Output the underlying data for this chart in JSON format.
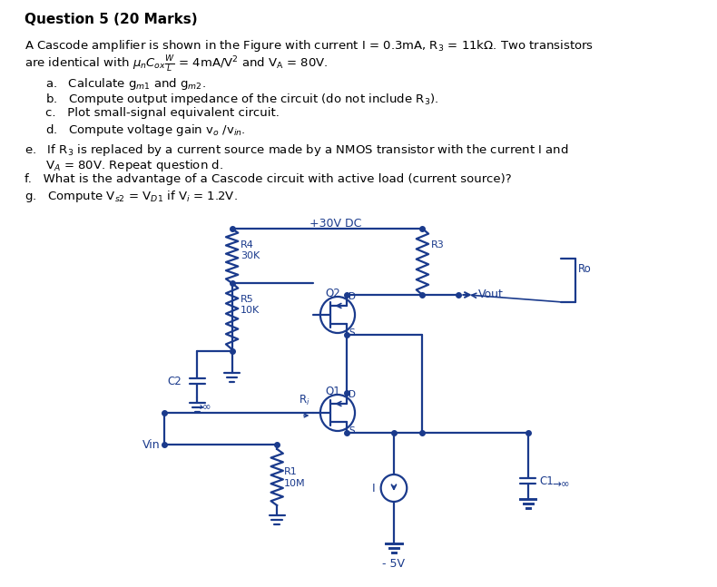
{
  "bg": "#ffffff",
  "cc": "#1a3a8c",
  "tc": "#000000",
  "fig_w": 7.9,
  "fig_h": 6.47,
  "dpi": 100,
  "title": "Question 5 (20 Marks)",
  "desc1": "A Cascode amplifier is shown in the Figure with current I = 0.3mA, R",
  "desc1b": " = 11kΩ. Two transistors",
  "desc2a": "are identical with ",
  "desc2b": " = 4mA/V",
  "desc2c": " and V",
  "desc2d": " = 80V.",
  "item_a": "a.   Calculate g",
  "item_b": "b.   Compute output impedance of the circuit (do not include R",
  "item_c": "c.   Plot small-signal equivalent circuit.",
  "item_d": "d.   Compute voltage gain v",
  "item_e1": "e.   If R",
  "item_e2": " is replaced by a current source made by a NMOS transistor with the current I and",
  "item_e3": "     V",
  "item_e4": " = 80V. Repeat question d.",
  "item_f": "f.   What is the advantage of a Cascode circuit with active load (current source)?",
  "item_g": "g.   Compute V",
  "vdd_label": "+30V DC",
  "vss_label": "- 5V",
  "r3_label": "R3",
  "r4_label": "R4",
  "r4_val": "30K",
  "r5_label": "R5",
  "r5_val": "10K",
  "r1_label": "R1",
  "r1_val": "10M",
  "ro_label": "Ro",
  "q1_label": "Q1",
  "q2_label": "Q2",
  "c1_label": "C1",
  "c2_label": "C2",
  "ri_label": "Ri",
  "i_label": "I",
  "vout_label": "Vout",
  "vin_label": "Vin",
  "inf_label": "→∞",
  "d_label": "D",
  "s_label": "S"
}
